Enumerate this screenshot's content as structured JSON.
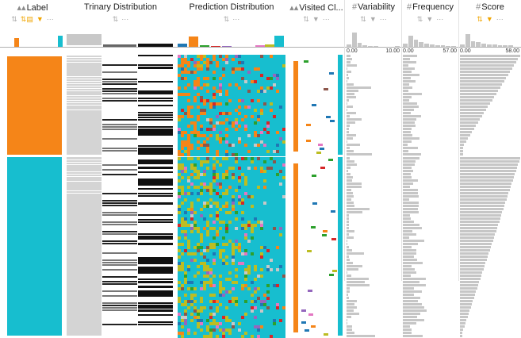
{
  "columns": [
    {
      "key": "label",
      "title": "Label",
      "icon": "category-icon"
    },
    {
      "key": "trinary",
      "title": "Trinary Distribution",
      "icon": ""
    },
    {
      "key": "prediction",
      "title": "Prediction Distribution",
      "icon": ""
    },
    {
      "key": "visited",
      "title": "Visited Cl...",
      "icon": "category-icon"
    },
    {
      "key": "variability",
      "title": "Variability",
      "icon": "number-icon"
    },
    {
      "key": "frequency",
      "title": "Frequency",
      "icon": "number-icon"
    },
    {
      "key": "score",
      "title": "Score",
      "icon": "number-icon"
    }
  ],
  "axes": {
    "variability": {
      "min": "0.00",
      "max": "10.00"
    },
    "frequency": {
      "min": "0.00",
      "max": "57.00"
    },
    "score": {
      "min": "0.00",
      "max": "58.00"
    }
  },
  "colors": {
    "orange": "#f58518",
    "teal": "#17becf",
    "gray": "#c8c8c8",
    "dark": "#333333",
    "olive": "#bcbd22",
    "blue": "#1f77b4",
    "green": "#2ca02c",
    "pink": "#e377c2",
    "purple": "#9467bd",
    "red": "#d62728",
    "brown": "#8c564b"
  },
  "icons": {
    "sort": "sort-icon",
    "filter": "filter-icon",
    "more": "more-icon",
    "group": "group-icon"
  }
}
